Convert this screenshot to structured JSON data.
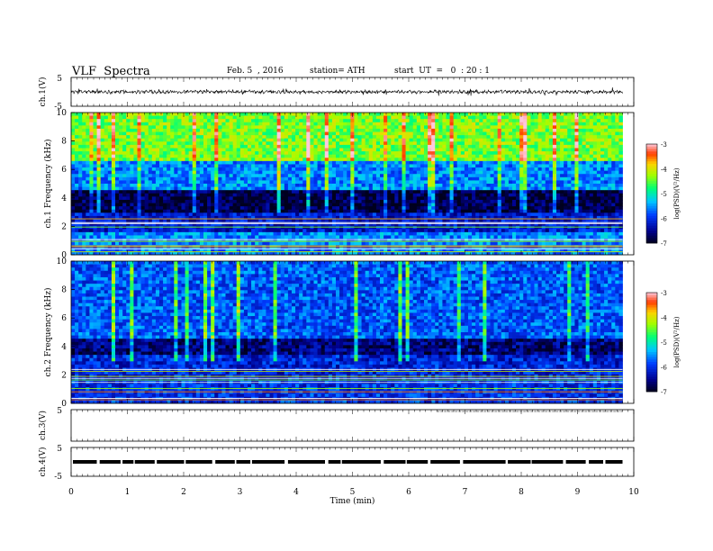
{
  "header": {
    "title": "VLF  Spectra",
    "date": "Feb. 5  , 2016",
    "station": "station= ATH",
    "start": "start  UT  =   0  : 20 : 1"
  },
  "chart_data": [
    {
      "type": "line",
      "panel": "ch1-waveform",
      "ylabel": "ch.1(V)",
      "ylim": [
        -5,
        5
      ],
      "ytick_labels": [
        "5",
        "-5"
      ],
      "xlim": [
        0,
        10
      ],
      "series_baseline": 0,
      "series_description_color": "#000000"
    },
    {
      "type": "heatmap",
      "panel": "ch1-spectrogram",
      "ylabel": "ch.1 Frequency  (kHz)",
      "ylim": [
        0,
        10
      ],
      "yticks": [
        0,
        2,
        4,
        6,
        8,
        10
      ],
      "xlim": [
        0,
        9.8
      ],
      "colorbar_label": "log(PSD)(V²/Hz)",
      "colorbar_range": [
        -7,
        -3
      ],
      "colorbar_ticks": [
        "-3",
        "-4",
        "-5",
        "-6",
        "-7"
      ],
      "band_levels": [
        {
          "f_from": 0,
          "f_to": 1.5,
          "level": -5.6
        },
        {
          "f_from": 1.5,
          "f_to": 3.0,
          "level": -6.2
        },
        {
          "f_from": 3.0,
          "f_to": 4.5,
          "level": -6.8
        },
        {
          "f_from": 4.5,
          "f_to": 6.5,
          "level": -5.6
        },
        {
          "f_from": 6.5,
          "f_to": 10,
          "level": -4.4
        }
      ]
    },
    {
      "type": "heatmap",
      "panel": "ch2-spectrogram",
      "ylabel": "ch.2 Frequency  (kHz)",
      "ylim": [
        0,
        10
      ],
      "yticks": [
        0,
        2,
        4,
        6,
        8,
        10
      ],
      "xlim": [
        0,
        9.8
      ],
      "colorbar_label": "log(PSD)(V²/Hz)",
      "colorbar_range": [
        -7,
        -3
      ],
      "colorbar_ticks": [
        "-3",
        "-4",
        "-5",
        "-6",
        "-7"
      ],
      "band_levels": [
        {
          "f_from": 0,
          "f_to": 1.5,
          "level": -6.0
        },
        {
          "f_from": 1.5,
          "f_to": 3.5,
          "level": -6.1
        },
        {
          "f_from": 3.5,
          "f_to": 4.5,
          "level": -6.6
        },
        {
          "f_from": 4.5,
          "f_to": 10,
          "level": -5.8
        }
      ]
    },
    {
      "type": "line",
      "panel": "ch3-waveform",
      "ylabel": "ch.3(V)",
      "ylim": [
        -5,
        5
      ],
      "ytick_labels": [
        "5"
      ],
      "xlim": [
        0,
        10
      ]
    },
    {
      "type": "line",
      "panel": "ch4-waveform",
      "ylabel": "ch.4(V)",
      "ylim": [
        -5,
        5
      ],
      "ytick_labels": [
        "5",
        "-5"
      ],
      "xlim": [
        0,
        10
      ],
      "series_baseline": 0
    }
  ],
  "xaxis": {
    "label": "Time  (min)",
    "ticks": [
      "0",
      "1",
      "2",
      "3",
      "4",
      "5",
      "6",
      "7",
      "8",
      "9",
      "10"
    ]
  }
}
